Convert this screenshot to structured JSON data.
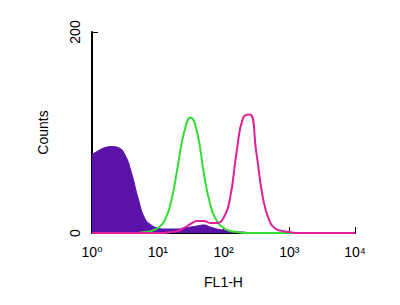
{
  "chart_data": {
    "type": "line",
    "x_label": "FL1-H",
    "y_label": "Counts",
    "log": "x",
    "grid": false,
    "xlim": [
      1,
      10000
    ],
    "xticks": [
      {
        "value": 1,
        "label": "10⁰"
      },
      {
        "value": 10,
        "label": "10¹"
      },
      {
        "value": 100,
        "label": "10²"
      },
      {
        "value": 1000,
        "label": "10³"
      },
      {
        "value": 10000,
        "label": "10⁴"
      }
    ],
    "ylim": [
      0,
      200
    ],
    "yticks": [
      0,
      200
    ],
    "x": [
      1,
      1.26,
      1.58,
      2,
      2.51,
      3.16,
      3.98,
      5.01,
      6.31,
      7.94,
      10,
      12.6,
      15.8,
      20,
      25.1,
      31.6,
      39.8,
      50.1,
      63.1,
      79.4,
      100,
      126,
      158,
      200,
      251,
      316,
      398,
      501,
      631,
      794,
      1000,
      1260,
      1580,
      2000,
      2510,
      3160,
      3980,
      5010,
      6310,
      7940,
      10000
    ],
    "series": [
      {
        "type": "area",
        "color": "#5a12a8",
        "values": [
          78,
          82,
          85,
          86,
          85,
          78,
          60,
          35,
          15,
          8,
          5,
          4,
          4,
          4,
          5,
          6,
          7,
          8,
          6,
          4,
          3,
          2,
          1,
          1,
          0,
          0,
          0,
          0,
          0,
          0,
          0,
          0,
          0,
          0,
          0,
          0,
          0,
          0,
          0,
          0,
          0
        ]
      },
      {
        "type": "line",
        "color": "#33dd33",
        "values": [
          0,
          0,
          0,
          0,
          0,
          0,
          0,
          0,
          1,
          2,
          5,
          12,
          30,
          65,
          100,
          115,
          100,
          60,
          28,
          12,
          5,
          2,
          1,
          0,
          0,
          0,
          0,
          0,
          0,
          0,
          0,
          0,
          0,
          0,
          0,
          0,
          0,
          0,
          0,
          0,
          0
        ]
      },
      {
        "type": "line",
        "color": "#e0209a",
        "values": [
          0,
          0,
          0,
          0,
          0,
          0,
          0,
          0,
          0,
          0,
          0,
          0,
          1,
          2,
          5,
          9,
          12,
          12,
          10,
          10,
          15,
          35,
          80,
          115,
          118,
          80,
          35,
          12,
          4,
          2,
          1,
          0,
          0,
          0,
          0,
          0,
          0,
          0,
          0,
          0,
          0
        ]
      }
    ]
  }
}
